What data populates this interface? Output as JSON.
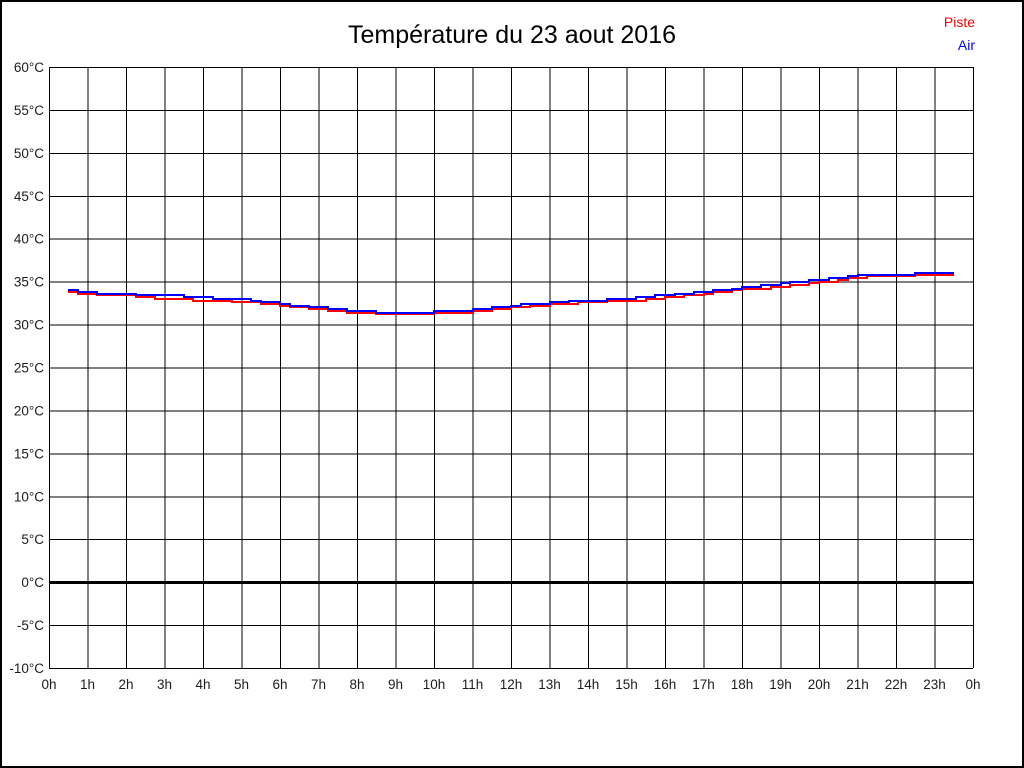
{
  "page": {
    "background": "#ffffff",
    "frame_color": "#000000"
  },
  "chart_data": {
    "type": "line",
    "title": "Température du 23 aout 2016",
    "xlabel": "",
    "ylabel": "",
    "x_unit": "hours",
    "grid": true,
    "legend_position": "top-right",
    "ylim": [
      -10,
      60
    ],
    "y_tick_step": 5,
    "y_tick_values": [
      60,
      55,
      50,
      45,
      40,
      35,
      30,
      25,
      20,
      15,
      10,
      5,
      0,
      -5,
      -10
    ],
    "y_tick_labels": [
      "60°C",
      "55°C",
      "50°C",
      "45°C",
      "40°C",
      "35°C",
      "30°C",
      "25°C",
      "20°C",
      "15°C",
      "10°C",
      "5°C",
      "0°C",
      "-5°C",
      "-10°C"
    ],
    "x_tick_hours": [
      0,
      1,
      2,
      3,
      4,
      5,
      6,
      7,
      8,
      9,
      10,
      11,
      12,
      13,
      14,
      15,
      16,
      17,
      18,
      19,
      20,
      21,
      22,
      23,
      24
    ],
    "x_tick_labels": [
      "0h",
      "1h",
      "2h",
      "3h",
      "4h",
      "5h",
      "6h",
      "7h",
      "8h",
      "9h",
      "10h",
      "11h",
      "12h",
      "13h",
      "14h",
      "15h",
      "16h",
      "17h",
      "18h",
      "19h",
      "20h",
      "21h",
      "22h",
      "23h",
      "0h"
    ],
    "zero_line": {
      "value": 0,
      "thick": true
    },
    "x": [
      0.5,
      1,
      1.5,
      2,
      2.5,
      3,
      3.5,
      4,
      4.5,
      5,
      5.5,
      6,
      6.5,
      7,
      7.5,
      8,
      8.5,
      9,
      9.5,
      10,
      10.5,
      11,
      11.5,
      12,
      12.5,
      13,
      13.5,
      14,
      14.5,
      15,
      15.5,
      16,
      16.5,
      17,
      17.5,
      18,
      18.5,
      19,
      19.5,
      20,
      20.5,
      21,
      21.5,
      22,
      22.5,
      23,
      23.5
    ],
    "series": [
      {
        "name": "Piste",
        "color": "#ff0000",
        "values": [
          33.7,
          33.5,
          33.4,
          33.3,
          33.15,
          33.0,
          32.9,
          32.8,
          32.7,
          32.6,
          32.4,
          32.2,
          31.95,
          31.7,
          31.5,
          31.35,
          31.25,
          31.2,
          31.2,
          31.3,
          31.4,
          31.5,
          31.7,
          32.0,
          32.15,
          32.3,
          32.45,
          32.6,
          32.7,
          32.8,
          32.95,
          33.15,
          33.35,
          33.6,
          33.85,
          34.1,
          34.25,
          34.45,
          34.65,
          34.9,
          35.2,
          35.45,
          35.55,
          35.65,
          35.7,
          35.75,
          35.8
        ]
      },
      {
        "name": "Air",
        "color": "#0000ff",
        "values": [
          33.9,
          33.7,
          33.6,
          33.5,
          33.45,
          33.4,
          33.25,
          33.1,
          33.0,
          32.9,
          32.65,
          32.4,
          32.15,
          31.9,
          31.7,
          31.55,
          31.45,
          31.4,
          31.4,
          31.5,
          31.6,
          31.75,
          31.95,
          32.2,
          32.4,
          32.55,
          32.7,
          32.8,
          32.9,
          33.0,
          33.2,
          33.4,
          33.6,
          33.8,
          34.05,
          34.3,
          34.55,
          34.8,
          35.0,
          35.2,
          35.45,
          35.7,
          35.8,
          35.85,
          35.9,
          35.9,
          35.9
        ]
      }
    ]
  }
}
